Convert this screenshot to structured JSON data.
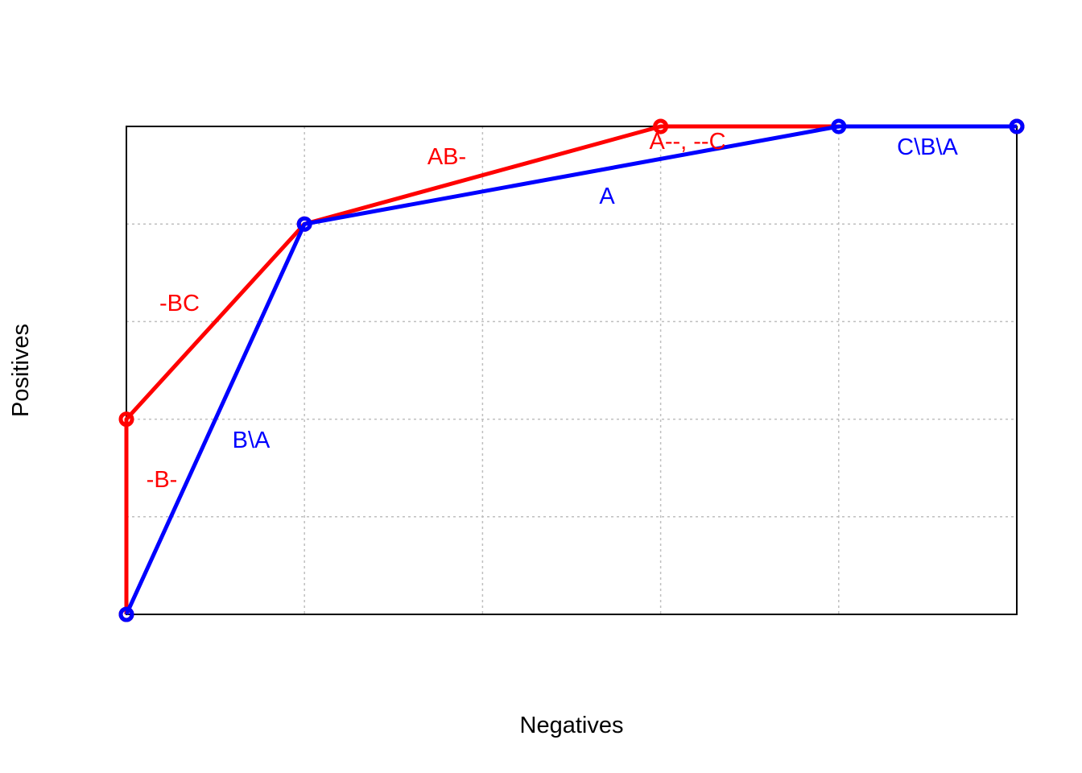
{
  "chart_data": {
    "type": "line",
    "title": "",
    "xlabel": "Negatives",
    "ylabel": "Positives",
    "xlim": [
      0,
      5
    ],
    "ylim": [
      0,
      5
    ],
    "grid": true,
    "tick_labels_shown": false,
    "series": [
      {
        "color": "#ff0000",
        "points": [
          [
            0,
            0
          ],
          [
            0,
            2
          ],
          [
            1,
            4
          ],
          [
            3,
            5
          ],
          [
            5,
            5
          ]
        ],
        "segment_labels": [
          "-B-",
          "-BC",
          "AB-",
          "A--, --C"
        ]
      },
      {
        "color": "#0000ff",
        "points": [
          [
            0,
            0
          ],
          [
            1,
            4
          ],
          [
            4,
            5
          ],
          [
            5,
            5
          ]
        ],
        "segment_labels": [
          "B\\A",
          "A",
          "C\\B\\A"
        ]
      }
    ]
  }
}
